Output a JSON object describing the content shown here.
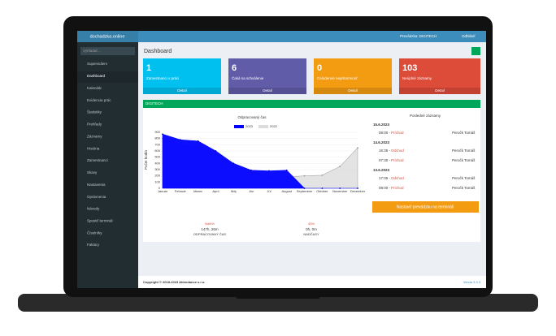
{
  "topbar": {
    "brand": "dochadzka.online",
    "workplace": "Prevádzka: DIGITECH",
    "logout": "Odhlásiť"
  },
  "sidebar": {
    "search": "Vyhľadať...",
    "items": [
      "Supervidiem",
      "Dashboard",
      "Kalendár",
      "Evidencia prác",
      "Štatistiky",
      "Prehľady",
      "Záznamy",
      "História",
      "Zamestnanci",
      "Skavy",
      "Nastavenia",
      "Oprávnenia",
      "Návody",
      "Spustiť terminál",
      "Číselníky",
      "Faktúry"
    ]
  },
  "page": {
    "title": "Dashboard"
  },
  "stats": [
    {
      "value": 1,
      "label": "Zamestnanci v práci",
      "link": "Detail",
      "color": "#00c0ef"
    },
    {
      "value": 6,
      "label": "Čaká na schválenie",
      "link": "Detail",
      "color": "#605ca8"
    },
    {
      "value": 0,
      "label": "Celodenné neprítomnosť",
      "link": "Detail",
      "color": "#f39c12"
    },
    {
      "value": 103,
      "label": "Neúplné záznamy",
      "link": "Detail",
      "color": "#dd4b39"
    }
  ],
  "panel": {
    "title": "DIGITECH"
  },
  "chart": {
    "type": "area",
    "title": "Odpracovaný čas",
    "y_label": "Počet hodín",
    "categories": [
      "Január",
      "Február",
      "Marec",
      "Apríl",
      "Máj",
      "Jún",
      "Júl",
      "August",
      "September",
      "Október",
      "November",
      "December"
    ],
    "series": [
      {
        "name": "2022",
        "color": "#dcdcdc",
        "values": [
          800,
          700,
          650,
          550,
          350,
          250,
          200,
          180,
          200,
          210,
          350,
          650
        ]
      },
      {
        "name": "2023",
        "color": "#0000ff",
        "values": [
          870,
          780,
          760,
          600,
          400,
          290,
          280,
          290,
          0,
          0,
          0,
          0
        ]
      }
    ],
    "ylim": [
      0,
      900
    ],
    "yticks": [
      0,
      100,
      200,
      300,
      400,
      500,
      600,
      700,
      800,
      900
    ]
  },
  "summary": [
    {
      "percent": "NaN%",
      "value": "147h, 26m",
      "label": "ODPRACOVANÝ ČAS"
    },
    {
      "percent": "40%",
      "value": "0h, 0m",
      "label": "NADČASY"
    }
  ],
  "records": {
    "title": "Posledné záznamy",
    "days": [
      {
        "date": "15.6.2023",
        "entries": [
          {
            "time": "08:00 -",
            "type": "Príchod",
            "name": "Peročk Tomáš"
          }
        ]
      },
      {
        "date": "14.6.2023",
        "entries": [
          {
            "time": "16:35 -",
            "type": "Odchod",
            "name": "Peročk Tomáš"
          },
          {
            "time": "07:30 -",
            "type": "Príchod",
            "name": "Peročk Tomáš"
          }
        ]
      },
      {
        "date": "13.6.2023",
        "entries": [
          {
            "time": "17:05 -",
            "type": "Odchod",
            "name": "Peročk Tomáš"
          },
          {
            "time": "08:00 -",
            "type": "Príchod",
            "name": "Peročk Tomáš"
          }
        ]
      }
    ]
  },
  "button": "Nastaviť prevádzku na termináli",
  "footer": {
    "copyright": "Copyright © 2018-2023 Attendance s.r.o.",
    "version": "Verzia 3.3.3"
  }
}
